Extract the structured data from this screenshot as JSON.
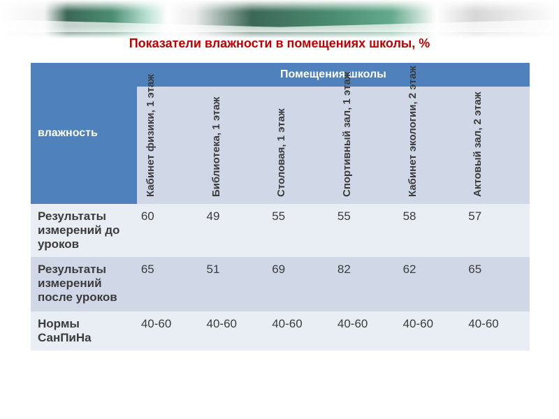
{
  "title": {
    "text": "Показатели влажности в помещениях школы, %",
    "color": "#c00000",
    "fontsize": 18,
    "weight": "bold"
  },
  "table": {
    "cornerLabel": "влажность",
    "groupHeader": "Помещения школы",
    "headerBg": "#4f81bd",
    "headerColor": "#ffffff",
    "headerFontsize": 16,
    "altBg1": "#d0d8e8",
    "altBg2": "#e9edf4",
    "bodyColor": "#3b3b3b",
    "bodyFontsize": 17,
    "colHeaderFontsize": 15,
    "columns": [
      "Кабинет физики, 1 этаж",
      "Библиотека, 1 этаж",
      "Столовая, 1 этаж",
      "Спортивный зал, 1 этаж",
      "Кабинет экологии, 2 этаж",
      "Актовый зал, 2 этаж"
    ],
    "rows": [
      {
        "label": "Результаты измерений   до уроков",
        "cells": [
          "60",
          "49",
          "55",
          "55",
          "58",
          "57"
        ]
      },
      {
        "label": "Результаты измерений после уроков",
        "cells": [
          "65",
          "51",
          "69",
          "82",
          "62",
          "65"
        ]
      },
      {
        "label": "Нормы СанПиНа",
        "cells": [
          "40-60",
          "40-60",
          "40-60",
          "40-60",
          "40-60",
          "40-60"
        ]
      }
    ]
  }
}
